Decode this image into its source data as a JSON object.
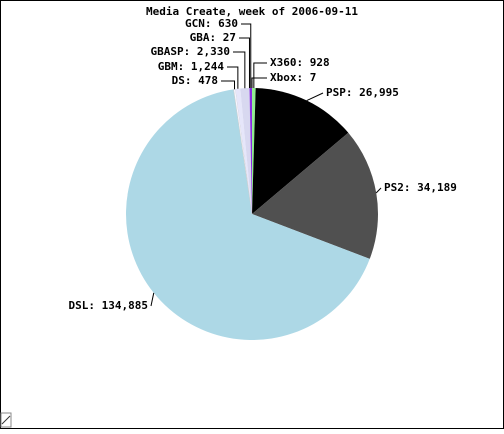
{
  "chart_data": {
    "type": "pie",
    "title": "Media Create, week of 2006-09-11",
    "categories": [
      "Xbox: 7",
      "X360: 928",
      "PSP: 26,995",
      "PS2: 34,189",
      "DSL: 134,885",
      "DS: 478",
      "GBM: 1,244",
      "GBASP: 2,330",
      "GBA: 27",
      "GCN: 630"
    ],
    "values": [
      7,
      928,
      26995,
      34189,
      134885,
      478,
      1244,
      2330,
      27,
      630
    ],
    "colors": [
      "#2e8b57",
      "#90ee90",
      "#000000",
      "#505050",
      "#add8e6",
      "#f5f5ff",
      "#e6e6fa",
      "#d8d8f0",
      "#9370db",
      "#8a2be2"
    ]
  }
}
